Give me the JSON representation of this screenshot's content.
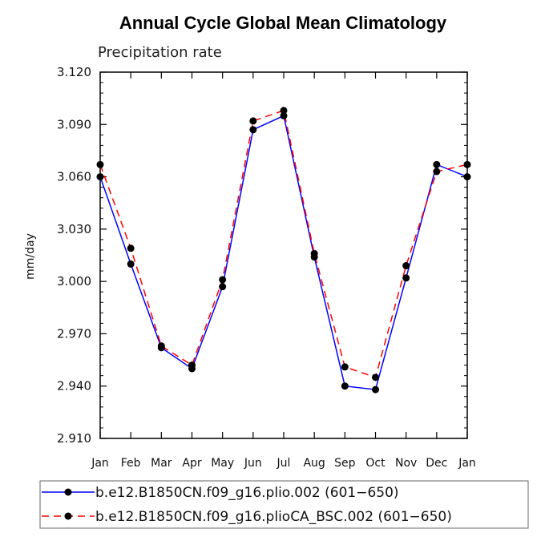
{
  "chart_data": {
    "type": "line",
    "title": "Annual Cycle Global Mean Climatology",
    "subtitle": "Precipitation rate",
    "xlabel": "",
    "ylabel": "mm/day",
    "ylim": [
      2.91,
      3.12
    ],
    "yticks": [
      "3.120",
      "3.090",
      "3.060",
      "3.030",
      "3.000",
      "2.970",
      "2.940",
      "2.910"
    ],
    "ytick_values": [
      3.12,
      3.09,
      3.06,
      3.03,
      3.0,
      2.97,
      2.94,
      2.91
    ],
    "categories": [
      "Jan",
      "Feb",
      "Mar",
      "Apr",
      "May",
      "Jun",
      "Jul",
      "Aug",
      "Sep",
      "Oct",
      "Nov",
      "Dec",
      "Jan"
    ],
    "series": [
      {
        "name": "b.e12.B1850CN.f09_g16.plio.002 (601−650)",
        "color": "#0000ff",
        "dash": "solid",
        "values": [
          3.06,
          3.01,
          2.962,
          2.95,
          2.997,
          3.087,
          3.095,
          3.014,
          2.94,
          2.938,
          3.002,
          3.067,
          3.06
        ]
      },
      {
        "name": "b.e12.B1850CN.f09_g16.plioCA_BSC.002 (601−650)",
        "color": "#ff0000",
        "dash": "dashed",
        "values": [
          3.067,
          3.019,
          2.963,
          2.952,
          3.001,
          3.092,
          3.098,
          3.016,
          2.951,
          2.945,
          3.009,
          3.063,
          3.067
        ]
      }
    ],
    "marker_color": "#000000",
    "legend_position": "bottom"
  }
}
